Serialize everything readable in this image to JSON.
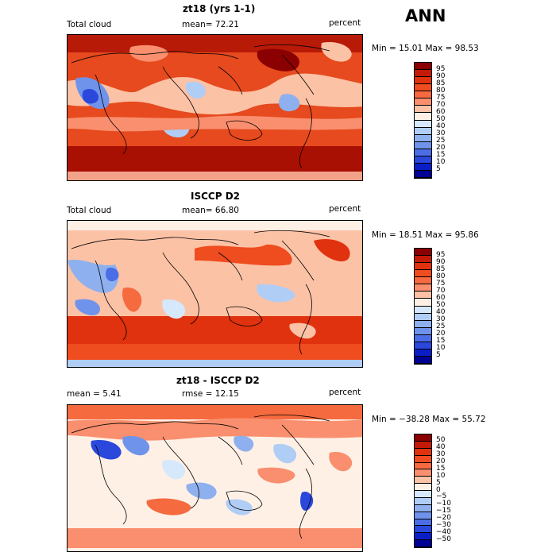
{
  "season": "ANN",
  "panels": [
    {
      "title": "zt18 (yrs 1-1)",
      "left_label": "Total cloud",
      "mid_label": "mean=  72.21",
      "right_label": "percent",
      "stats": "Min =  15.01  Max =  98.53",
      "colorbar_ticks": [
        "95",
        "90",
        "85",
        "80",
        "75",
        "70",
        "60",
        "50",
        "40",
        "30",
        "25",
        "20",
        "15",
        "10",
        "5"
      ],
      "colorbar_colors": [
        "#8b0000",
        "#c41a08",
        "#e0320e",
        "#ef4c1f",
        "#f56a3f",
        "#f98f6e",
        "#fcc2a6",
        "#fff0e6",
        "#d6e8fb",
        "#b0cdf5",
        "#8eb0ef",
        "#6f93ea",
        "#4b6ee6",
        "#2a48dc",
        "#0a1ec8",
        "#000095"
      ]
    },
    {
      "title": "ISCCP D2",
      "left_label": "Total cloud",
      "mid_label": "mean=  66.80",
      "right_label": "percent",
      "stats": "Min =  18.51  Max =  95.86",
      "colorbar_ticks": [
        "95",
        "90",
        "85",
        "80",
        "75",
        "70",
        "60",
        "50",
        "40",
        "30",
        "25",
        "20",
        "15",
        "10",
        "5"
      ],
      "colorbar_colors": [
        "#8b0000",
        "#c41a08",
        "#e0320e",
        "#ef4c1f",
        "#f56a3f",
        "#f98f6e",
        "#fcc2a6",
        "#fff0e6",
        "#d6e8fb",
        "#b0cdf5",
        "#8eb0ef",
        "#6f93ea",
        "#4b6ee6",
        "#2a48dc",
        "#0a1ec8",
        "#000095"
      ]
    },
    {
      "title": "zt18 - ISCCP D2",
      "left_label": "mean =    5.41",
      "mid_label": "rmse =   12.15",
      "right_label": "percent",
      "stats": "Min = −38.28  Max =  55.72",
      "colorbar_ticks": [
        "50",
        "40",
        "30",
        "20",
        "15",
        "10",
        "5",
        "0",
        "−5",
        "−10",
        "−15",
        "−20",
        "−30",
        "−40",
        "−50"
      ],
      "colorbar_colors": [
        "#8b0000",
        "#c41a08",
        "#e0320e",
        "#ef4c1f",
        "#f56a3f",
        "#f98f6e",
        "#fcc2a6",
        "#fff0e6",
        "#d6e8fb",
        "#b0cdf5",
        "#8eb0ef",
        "#6f93ea",
        "#4b6ee6",
        "#2a48dc",
        "#0a1ec8",
        "#000095"
      ]
    }
  ],
  "chart_data": [
    {
      "type": "heatmap",
      "title": "zt18 (yrs 1-1)",
      "variable": "Total cloud",
      "units": "percent",
      "mean": 72.21,
      "min": 15.01,
      "max": 98.53,
      "contour_levels": [
        5,
        10,
        15,
        20,
        25,
        30,
        40,
        50,
        60,
        70,
        75,
        80,
        85,
        90,
        95
      ]
    },
    {
      "type": "heatmap",
      "title": "ISCCP D2",
      "variable": "Total cloud",
      "units": "percent",
      "mean": 66.8,
      "min": 18.51,
      "max": 95.86,
      "contour_levels": [
        5,
        10,
        15,
        20,
        25,
        30,
        40,
        50,
        60,
        70,
        75,
        80,
        85,
        90,
        95
      ]
    },
    {
      "type": "heatmap",
      "title": "zt18 - ISCCP D2",
      "units": "percent",
      "mean": 5.41,
      "rmse": 12.15,
      "min": -38.28,
      "max": 55.72,
      "contour_levels": [
        -50,
        -40,
        -30,
        -20,
        -15,
        -10,
        -5,
        0,
        5,
        10,
        15,
        20,
        30,
        40,
        50
      ]
    }
  ]
}
